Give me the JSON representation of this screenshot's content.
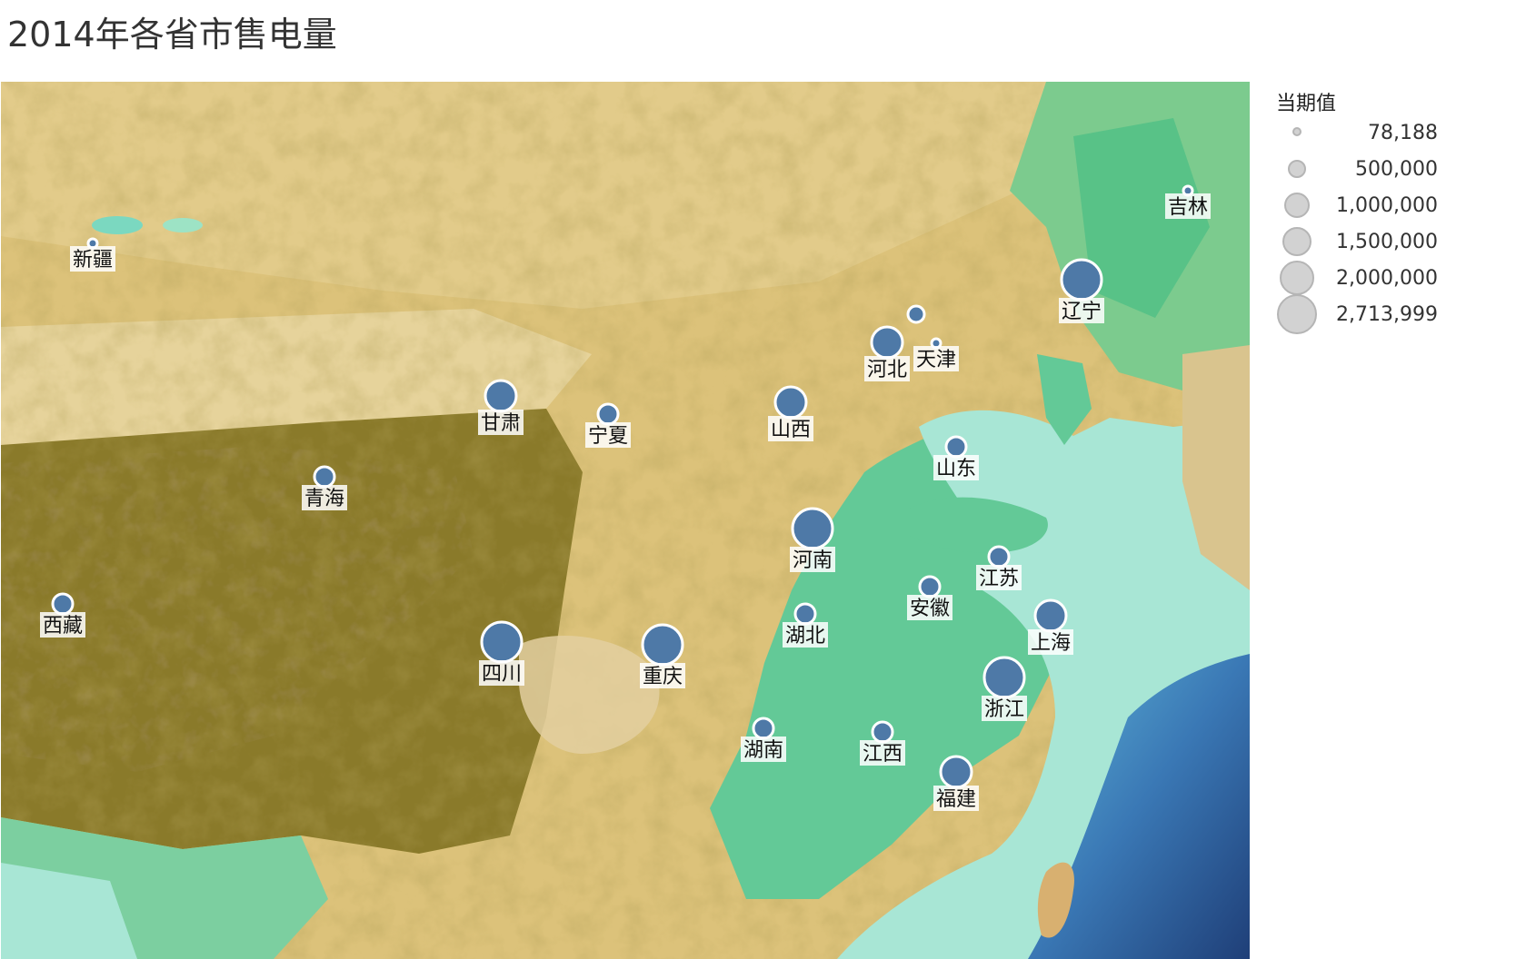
{
  "title": "2014年各省市售电量",
  "legend": {
    "title": "当期值",
    "items": [
      "78,188",
      "500,000",
      "1,000,000",
      "1,500,000",
      "2,000,000",
      "2,713,999"
    ]
  },
  "colors": {
    "marker_fill": "#4e79a7",
    "marker_stroke": "#ffffff",
    "legend_fill": "#d2d2d2",
    "sea": "#a8e6d5",
    "deep_sea": "#3a78b5",
    "plain": "#63c997",
    "desert": "#dcc27a",
    "plateau": "#8a7a2a"
  },
  "markers": [
    {
      "label": "新疆",
      "size": "tiny"
    },
    {
      "label": "甘肃",
      "size": "medium"
    },
    {
      "label": "宁夏",
      "size": "small"
    },
    {
      "label": "青海",
      "size": "small"
    },
    {
      "label": "西藏",
      "size": "small"
    },
    {
      "label": "四川",
      "size": "large"
    },
    {
      "label": "重庆",
      "size": "large"
    },
    {
      "label": "山西",
      "size": "medium"
    },
    {
      "label": "河北",
      "size": "medium"
    },
    {
      "label": "天津",
      "size": "tiny"
    },
    {
      "label": "吉林",
      "size": "tiny"
    },
    {
      "label": "辽宁",
      "size": "large"
    },
    {
      "label": "山东",
      "size": "small"
    },
    {
      "label": "河南",
      "size": "large"
    },
    {
      "label": "江苏",
      "size": "small"
    },
    {
      "label": "安徽",
      "size": "small"
    },
    {
      "label": "湖北",
      "size": "small"
    },
    {
      "label": "上海",
      "size": "medium"
    },
    {
      "label": "浙江",
      "size": "large"
    },
    {
      "label": "湖南",
      "size": "small"
    },
    {
      "label": "江西",
      "size": "small"
    },
    {
      "label": "福建",
      "size": "medium"
    }
  ]
}
